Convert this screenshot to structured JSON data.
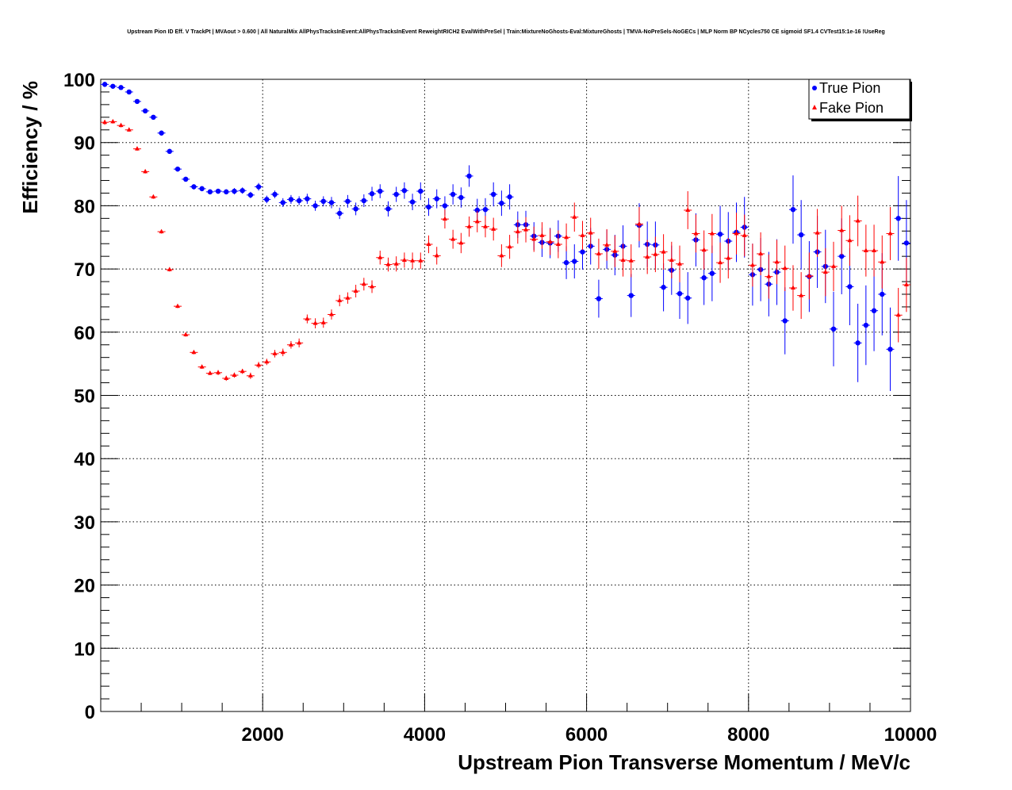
{
  "chart_data": {
    "type": "scatter",
    "title": "Upstream Pion ID Eff. V TrackPt | MVAout > 0.600 | All NaturalMix AllPhysTracksInEvent:AllPhysTracksInEvent ReweightRICH2 EvalWithPreSel | Train:MixtureNoGhosts-Eval:MixtureGhosts | TMVA-NoPreSels-NoGECs | MLP Norm BP NCycles750 CE sigmoid SF1.4 CVTest15:1e-16 !UseReg",
    "xlabel": "Upstream Pion Transverse Momentum / MeV/c",
    "ylabel": "Efficiency / %",
    "xlim": [
      0,
      10000
    ],
    "ylim": [
      0,
      100
    ],
    "x_ticks": [
      "2000",
      "4000",
      "6000",
      "8000",
      "10000"
    ],
    "y_ticks": [
      "0",
      "10",
      "20",
      "30",
      "40",
      "50",
      "60",
      "70",
      "80",
      "90",
      "100"
    ],
    "grid": true,
    "legend_position": "top-right",
    "x": [
      50,
      150,
      250,
      350,
      450,
      550,
      650,
      750,
      850,
      950,
      1050,
      1150,
      1250,
      1350,
      1450,
      1550,
      1650,
      1750,
      1850,
      1950,
      2050,
      2150,
      2250,
      2350,
      2450,
      2550,
      2650,
      2750,
      2850,
      2950,
      3050,
      3150,
      3250,
      3350,
      3450,
      3550,
      3650,
      3750,
      3850,
      3950,
      4050,
      4150,
      4250,
      4350,
      4450,
      4550,
      4650,
      4750,
      4850,
      4950,
      5050,
      5150,
      5250,
      5350,
      5450,
      5550,
      5650,
      5750,
      5850,
      5950,
      6050,
      6150,
      6250,
      6350,
      6450,
      6550,
      6650,
      6750,
      6850,
      6950,
      7050,
      7150,
      7250,
      7350,
      7450,
      7550,
      7650,
      7750,
      7850,
      7950,
      8050,
      8150,
      8250,
      8350,
      8450,
      8550,
      8650,
      8750,
      8850,
      8950,
      9050,
      9150,
      9250,
      9350,
      9450,
      9550,
      9650,
      9750,
      9850,
      9950
    ],
    "series": [
      {
        "name": "True Pion",
        "color": "#0000ff",
        "marker": "circle",
        "values": [
          99.2,
          98.9,
          98.7,
          98.0,
          96.5,
          95.0,
          94.0,
          91.5,
          88.6,
          85.8,
          84.2,
          83.0,
          82.7,
          82.2,
          82.3,
          82.2,
          82.3,
          82.4,
          81.7,
          83.0,
          81.0,
          81.8,
          80.5,
          81.0,
          80.8,
          81.1,
          80.0,
          80.7,
          80.5,
          78.8,
          80.7,
          79.5,
          80.8,
          81.9,
          82.3,
          79.5,
          81.8,
          82.4,
          80.6,
          82.3,
          79.8,
          81.1,
          80.0,
          81.8,
          81.3,
          84.7,
          79.3,
          79.4,
          81.8,
          80.4,
          81.4,
          77.0,
          77.0,
          75.2,
          74.2,
          74.1,
          75.2,
          71.0,
          71.2,
          72.7,
          73.6,
          65.3,
          73.1,
          72.2,
          73.6,
          65.8,
          76.9,
          73.9,
          73.8,
          67.1,
          69.8,
          66.1,
          65.4,
          74.6,
          68.6,
          69.3,
          75.5,
          74.4,
          75.8,
          76.6,
          69.1,
          69.9,
          67.6,
          69.5,
          61.8,
          79.4,
          75.4,
          68.8,
          72.7,
          70.4,
          60.5,
          72.0,
          67.2,
          58.3,
          61.1,
          63.4,
          66.0,
          57.3,
          78.0,
          74.1
        ],
        "errors": [
          0.4,
          0.3,
          0.3,
          0.3,
          0.3,
          0.3,
          0.3,
          0.4,
          0.4,
          0.4,
          0.4,
          0.4,
          0.4,
          0.4,
          0.4,
          0.4,
          0.5,
          0.5,
          0.5,
          0.6,
          0.6,
          0.6,
          0.7,
          0.7,
          0.7,
          0.8,
          0.8,
          0.8,
          0.9,
          0.9,
          1.0,
          1.0,
          1.0,
          1.1,
          1.1,
          1.2,
          1.2,
          1.3,
          1.3,
          1.4,
          1.4,
          1.5,
          1.5,
          1.6,
          1.6,
          1.7,
          1.8,
          1.8,
          1.9,
          2.0,
          2.0,
          2.1,
          2.2,
          2.2,
          2.3,
          2.4,
          2.5,
          2.6,
          2.7,
          2.8,
          2.9,
          3.0,
          3.1,
          3.2,
          3.3,
          3.4,
          3.5,
          3.6,
          3.7,
          3.8,
          3.9,
          4.0,
          4.1,
          4.2,
          4.3,
          4.4,
          4.5,
          4.6,
          4.7,
          4.8,
          4.9,
          5.0,
          5.1,
          5.2,
          5.3,
          5.4,
          5.5,
          5.6,
          5.7,
          5.8,
          5.9,
          6.0,
          6.1,
          6.2,
          6.3,
          6.4,
          6.5,
          6.6,
          6.7,
          6.8
        ]
      },
      {
        "name": "Fake Pion",
        "color": "#ff0000",
        "marker": "triangle",
        "values": [
          93.2,
          93.3,
          92.7,
          92.0,
          89.0,
          85.4,
          81.4,
          75.9,
          69.9,
          64.1,
          59.6,
          56.8,
          54.5,
          53.5,
          53.6,
          52.7,
          53.2,
          53.8,
          53.1,
          54.8,
          55.3,
          56.6,
          56.8,
          58.0,
          58.3,
          62.1,
          61.4,
          61.5,
          62.8,
          65.0,
          65.4,
          66.5,
          67.6,
          67.2,
          71.8,
          70.7,
          70.8,
          71.4,
          71.3,
          71.3,
          73.9,
          72.1,
          77.9,
          74.7,
          74.1,
          76.7,
          77.5,
          76.7,
          76.3,
          72.1,
          73.5,
          75.9,
          76.2,
          74.7,
          75.3,
          74.3,
          73.9,
          75.0,
          78.2,
          75.3,
          75.7,
          72.4,
          73.8,
          72.8,
          71.4,
          71.3,
          77.1,
          71.9,
          72.3,
          72.7,
          71.4,
          70.8,
          79.3,
          75.6,
          73.0,
          75.6,
          71.0,
          71.7,
          75.6,
          75.3,
          70.6,
          72.4,
          68.8,
          71.1,
          70.1,
          67.0,
          65.8,
          68.9,
          75.7,
          69.5,
          70.4,
          76.1,
          74.5,
          77.6,
          72.9,
          72.9,
          71.1,
          75.6,
          62.7,
          67.5
        ],
        "errors": [
          0.4,
          0.3,
          0.3,
          0.3,
          0.3,
          0.3,
          0.3,
          0.3,
          0.3,
          0.3,
          0.3,
          0.3,
          0.3,
          0.3,
          0.4,
          0.4,
          0.4,
          0.4,
          0.5,
          0.5,
          0.5,
          0.6,
          0.6,
          0.6,
          0.7,
          0.7,
          0.8,
          0.8,
          0.8,
          0.9,
          0.9,
          1.0,
          1.0,
          1.0,
          1.1,
          1.1,
          1.2,
          1.2,
          1.3,
          1.3,
          1.4,
          1.4,
          1.5,
          1.5,
          1.6,
          1.6,
          1.7,
          1.7,
          1.8,
          1.8,
          1.9,
          1.9,
          2.0,
          2.0,
          2.1,
          2.1,
          2.2,
          2.2,
          2.3,
          2.3,
          2.4,
          2.4,
          2.5,
          2.5,
          2.6,
          2.6,
          2.7,
          2.7,
          2.8,
          2.8,
          2.9,
          2.9,
          3.0,
          3.0,
          3.1,
          3.1,
          3.2,
          3.2,
          3.3,
          3.3,
          3.4,
          3.4,
          3.5,
          3.5,
          3.6,
          3.6,
          3.7,
          3.7,
          3.8,
          3.8,
          3.9,
          3.9,
          4.0,
          4.0,
          4.1,
          4.1,
          4.2,
          4.2,
          4.3,
          4.3
        ]
      }
    ]
  }
}
